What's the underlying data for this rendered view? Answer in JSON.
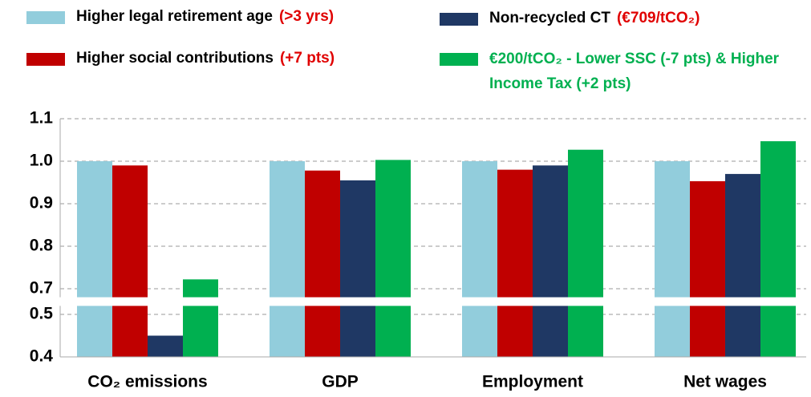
{
  "chart_data": {
    "type": "bar",
    "categories": [
      "CO₂ emissions",
      "GDP",
      "Employment",
      "Net wages"
    ],
    "series": [
      {
        "name": "Higher legal retirement age",
        "note": "(>3 yrs)",
        "color": "#92cddc",
        "values": [
          1.0,
          1.0,
          1.0,
          1.0
        ]
      },
      {
        "name": "Higher social contributions",
        "note": "(+7 pts)",
        "color": "#c00000",
        "values": [
          0.99,
          0.978,
          0.98,
          0.953
        ]
      },
      {
        "name": "Non-recycled CT",
        "note": "(€709/tCO₂)",
        "color": "#1f3864",
        "values": [
          0.45,
          0.955,
          0.99,
          0.97
        ]
      },
      {
        "name": "€200/tCO₂ - Lower SSC (-7 pts) & Higher Income Tax (+2 pts)",
        "color": "#00b050",
        "values": [
          0.722,
          1.003,
          1.027,
          1.047
        ]
      }
    ],
    "ylim": [
      0.4,
      1.1
    ],
    "axis_break": [
      0.52,
      0.68
    ],
    "yticks": [
      0.4,
      0.5,
      0.7,
      0.8,
      0.9,
      {
        "value": 1,
        "label": "1.0"
      },
      1.1
    ],
    "grid": true
  }
}
